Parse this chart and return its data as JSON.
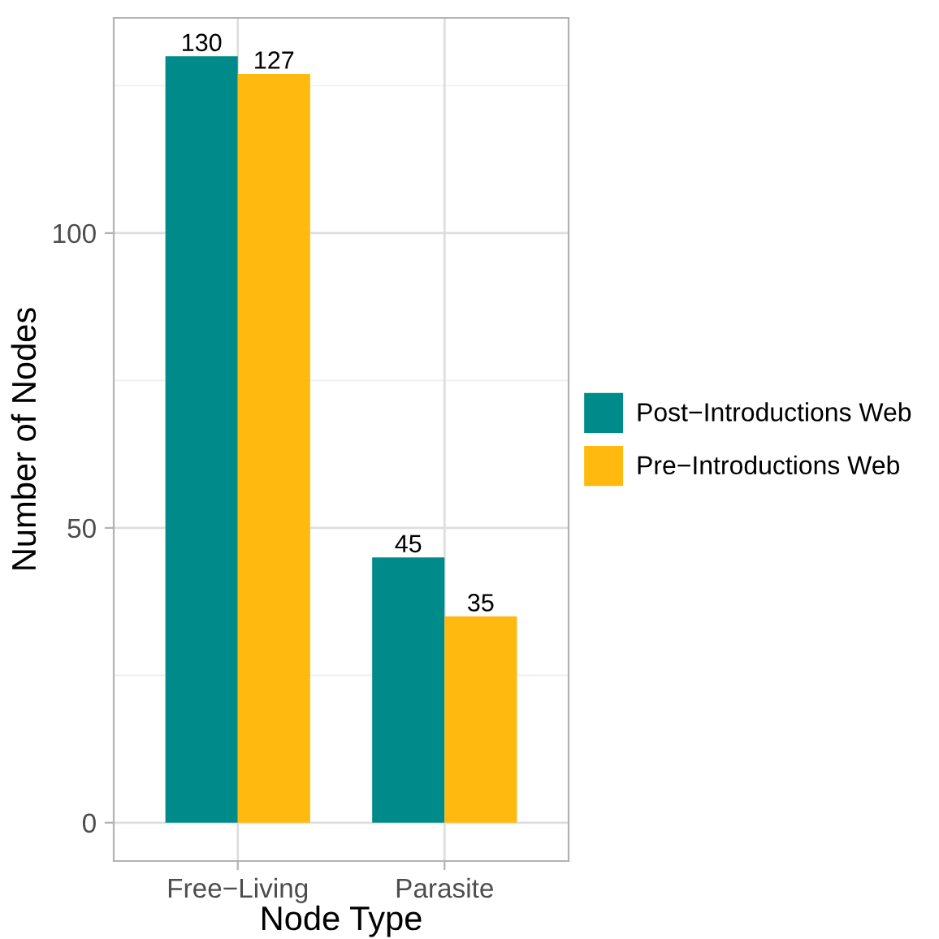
{
  "chart_data": {
    "type": "bar",
    "xlabel": "Node Type",
    "ylabel": "Number of Nodes",
    "categories": [
      "Free−Living",
      "Parasite"
    ],
    "series": [
      {
        "name": "Post−Introductions Web",
        "color": "#008b8b",
        "values": [
          130,
          45
        ]
      },
      {
        "name": "Pre−Introductions Web",
        "color": "#ffb90f",
        "values": [
          127,
          35
        ]
      }
    ],
    "ylim": [
      -6.5,
      136.5
    ],
    "yticks": [
      0,
      50,
      100
    ],
    "grid": true,
    "legend": "right",
    "data_labels": true
  }
}
